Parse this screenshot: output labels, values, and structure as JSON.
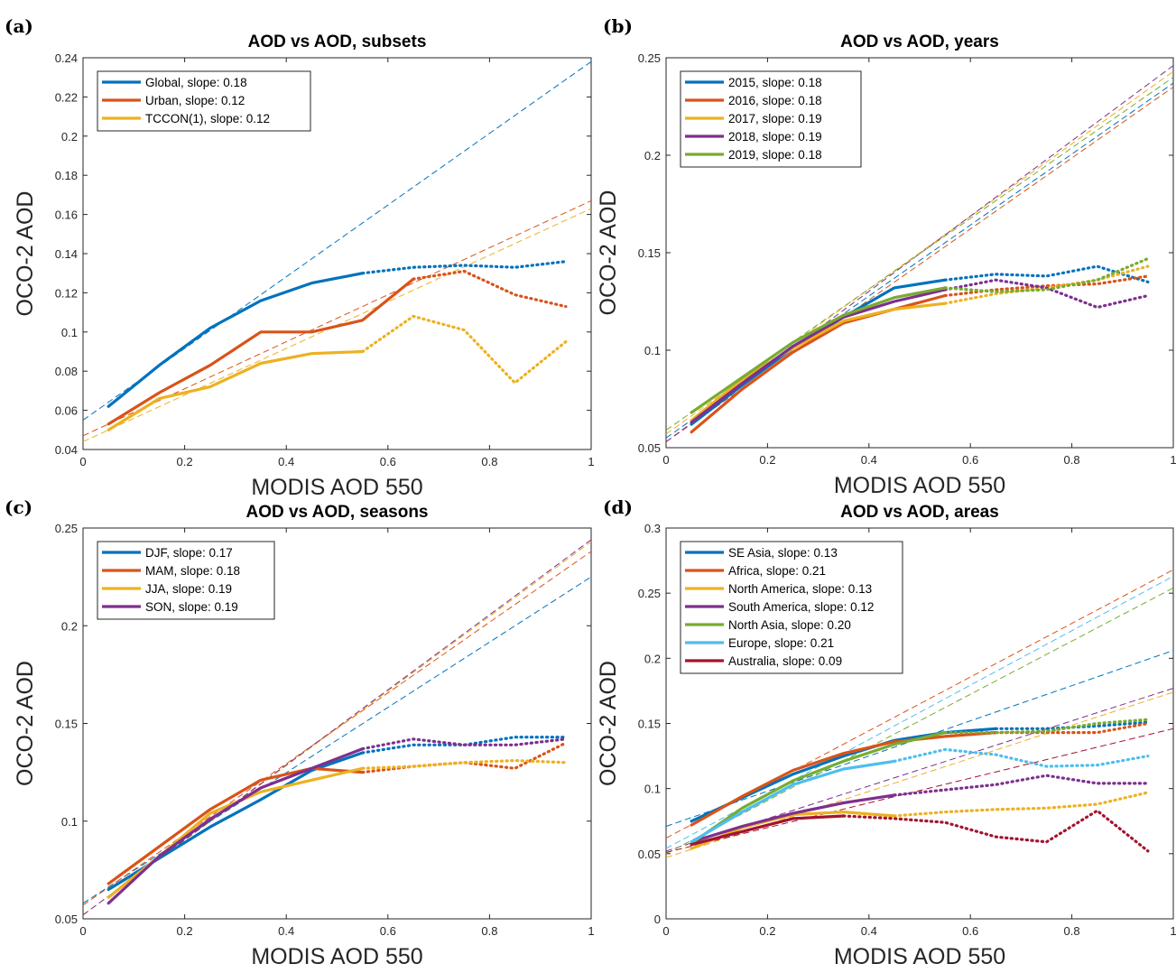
{
  "colors": {
    "blue": "#0072bd",
    "orange": "#d95319",
    "yellow": "#edb120",
    "purple": "#7e2f8e",
    "green": "#77ac30",
    "cyan": "#4dbeee",
    "darkred": "#a2142f"
  },
  "chart_data": [
    {
      "panel_label": "(a)",
      "type": "line",
      "title": "AOD vs AOD, subsets",
      "xlabel": "MODIS AOD 550",
      "ylabel": "OCO-2 AOD",
      "xlim": [
        0,
        1
      ],
      "ylim": [
        0.04,
        0.24
      ],
      "xticks": [
        "0",
        "0.2",
        "0.4",
        "0.6",
        "0.8",
        "1"
      ],
      "yticks": [
        "0.04",
        "0.06",
        "0.08",
        "0.1",
        "0.12",
        "0.14",
        "0.16",
        "0.18",
        "0.2",
        "0.22",
        "0.24"
      ],
      "x": [
        0.05,
        0.15,
        0.25,
        0.35,
        0.45,
        0.55,
        0.65,
        0.75,
        0.85,
        0.95
      ],
      "grid": false,
      "legend_position": "top-left",
      "series": [
        {
          "name": "Global, slope: 0.18",
          "color": "#0072bd",
          "solid_until": 0.55,
          "values": [
            0.062,
            0.083,
            0.102,
            0.116,
            0.125,
            0.13,
            0.133,
            0.134,
            0.133,
            0.136
          ],
          "fit": [
            0.055,
            0.238
          ]
        },
        {
          "name": "Urban, slope: 0.12",
          "color": "#d95319",
          "solid_until": 0.65,
          "values": [
            0.053,
            0.069,
            0.083,
            0.1,
            0.1,
            0.106,
            0.127,
            0.131,
            0.119,
            0.113
          ],
          "fit": [
            0.047,
            0.167
          ]
        },
        {
          "name": "TCCON(1), slope: 0.12",
          "color": "#edb120",
          "solid_until": 0.55,
          "values": [
            0.05,
            0.066,
            0.072,
            0.084,
            0.089,
            0.09,
            0.108,
            0.101,
            0.074,
            0.095
          ],
          "fit": [
            0.044,
            0.163
          ]
        }
      ]
    },
    {
      "panel_label": "(b)",
      "type": "line",
      "title": "AOD vs AOD, years",
      "xlabel": "MODIS AOD 550",
      "ylabel": "OCO-2 AOD",
      "xlim": [
        0,
        1
      ],
      "ylim": [
        0.05,
        0.25
      ],
      "xticks": [
        "0",
        "0.2",
        "0.4",
        "0.6",
        "0.8",
        "1"
      ],
      "yticks": [
        "0.05",
        "0.1",
        "0.15",
        "0.2",
        "0.25"
      ],
      "x": [
        0.05,
        0.15,
        0.25,
        0.35,
        0.45,
        0.55,
        0.65,
        0.75,
        0.85,
        0.95
      ],
      "grid": false,
      "legend_position": "top-left",
      "series": [
        {
          "name": "2015, slope: 0.18",
          "color": "#0072bd",
          "solid_until": 0.55,
          "values": [
            0.062,
            0.082,
            0.101,
            0.117,
            0.132,
            0.136,
            0.139,
            0.138,
            0.143,
            0.135
          ],
          "fit": [
            0.055,
            0.237
          ]
        },
        {
          "name": "2016, slope: 0.18",
          "color": "#d95319",
          "solid_until": 0.55,
          "values": [
            0.058,
            0.08,
            0.099,
            0.114,
            0.121,
            0.128,
            0.131,
            0.133,
            0.134,
            0.138
          ],
          "fit": [
            0.053,
            0.235
          ]
        },
        {
          "name": "2017, slope: 0.19",
          "color": "#edb120",
          "solid_until": 0.55,
          "values": [
            0.064,
            0.085,
            0.101,
            0.115,
            0.121,
            0.124,
            0.129,
            0.132,
            0.136,
            0.143
          ],
          "fit": [
            0.057,
            0.243
          ]
        },
        {
          "name": "2018, slope: 0.19",
          "color": "#7e2f8e",
          "solid_until": 0.55,
          "values": [
            0.063,
            0.083,
            0.102,
            0.117,
            0.125,
            0.131,
            0.136,
            0.132,
            0.122,
            0.128
          ],
          "fit": [
            0.053,
            0.246
          ]
        },
        {
          "name": "2019, slope: 0.18",
          "color": "#77ac30",
          "solid_until": 0.55,
          "values": [
            0.068,
            0.086,
            0.104,
            0.118,
            0.127,
            0.132,
            0.13,
            0.131,
            0.136,
            0.147
          ],
          "fit": [
            0.059,
            0.24
          ]
        }
      ]
    },
    {
      "panel_label": "(c)",
      "type": "line",
      "title": "AOD vs AOD, seasons",
      "xlabel": "MODIS AOD 550",
      "ylabel": "OCO-2 AOD",
      "xlim": [
        0,
        1
      ],
      "ylim": [
        0.05,
        0.25
      ],
      "xticks": [
        "0",
        "0.2",
        "0.4",
        "0.6",
        "0.8",
        "1"
      ],
      "yticks": [
        "0.05",
        "0.1",
        "0.15",
        "0.2",
        "0.25"
      ],
      "x": [
        0.05,
        0.15,
        0.25,
        0.35,
        0.45,
        0.55,
        0.65,
        0.75,
        0.85,
        0.95
      ],
      "grid": false,
      "legend_position": "top-left",
      "series": [
        {
          "name": "DJF, slope: 0.17",
          "color": "#0072bd",
          "solid_until": 0.55,
          "values": [
            0.065,
            0.081,
            0.097,
            0.111,
            0.126,
            0.135,
            0.139,
            0.139,
            0.143,
            0.143
          ],
          "fit": [
            0.058,
            0.225
          ]
        },
        {
          "name": "MAM, slope: 0.18",
          "color": "#d95319",
          "solid_until": 0.55,
          "values": [
            0.068,
            0.087,
            0.106,
            0.121,
            0.127,
            0.125,
            0.128,
            0.13,
            0.127,
            0.14
          ],
          "fit": [
            0.057,
            0.238
          ]
        },
        {
          "name": "JJA, slope: 0.19",
          "color": "#edb120",
          "solid_until": 0.55,
          "values": [
            0.061,
            0.082,
            0.104,
            0.115,
            0.121,
            0.127,
            0.128,
            0.13,
            0.131,
            0.13
          ],
          "fit": [
            0.052,
            0.243
          ]
        },
        {
          "name": "SON, slope: 0.19",
          "color": "#7e2f8e",
          "solid_until": 0.55,
          "values": [
            0.058,
            0.082,
            0.101,
            0.117,
            0.127,
            0.137,
            0.142,
            0.139,
            0.139,
            0.142
          ],
          "fit": [
            0.052,
            0.244
          ]
        }
      ]
    },
    {
      "panel_label": "(d)",
      "type": "line",
      "title": "AOD vs AOD, areas",
      "xlabel": "MODIS AOD 550",
      "ylabel": "OCO-2 AOD",
      "xlim": [
        0,
        1
      ],
      "ylim": [
        0,
        0.3
      ],
      "xticks": [
        "0",
        "0.2",
        "0.4",
        "0.6",
        "0.8",
        "1"
      ],
      "yticks": [
        "0",
        "0.05",
        "0.1",
        "0.15",
        "0.2",
        "0.25",
        "0.3"
      ],
      "grid": false,
      "legend_position": "top-left",
      "series": [
        {
          "name": "SE Asia, slope: 0.13",
          "color": "#0072bd",
          "solid_until": 0.65,
          "x": [
            0.05,
            0.15,
            0.25,
            0.35,
            0.45,
            0.55,
            0.65,
            0.75,
            0.85,
            0.95
          ],
          "values": [
            0.075,
            0.093,
            0.111,
            0.125,
            0.137,
            0.143,
            0.146,
            0.146,
            0.148,
            0.151
          ],
          "fit": [
            0.071,
            0.206
          ]
        },
        {
          "name": "Africa, slope: 0.21",
          "color": "#d95319",
          "solid_until": 0.65,
          "x": [
            0.05,
            0.15,
            0.25,
            0.35,
            0.45,
            0.55,
            0.65,
            0.75,
            0.85,
            0.95
          ],
          "values": [
            0.072,
            0.094,
            0.114,
            0.127,
            0.136,
            0.14,
            0.143,
            0.143,
            0.143,
            0.15
          ],
          "fit": [
            0.062,
            0.268
          ]
        },
        {
          "name": "North America, slope: 0.13",
          "color": "#edb120",
          "solid_until": 0.45,
          "x": [
            0.05,
            0.15,
            0.25,
            0.35,
            0.45,
            0.55,
            0.65,
            0.75,
            0.85,
            0.95
          ],
          "values": [
            0.054,
            0.07,
            0.08,
            0.082,
            0.079,
            0.082,
            0.084,
            0.085,
            0.088,
            0.097
          ],
          "fit": [
            0.047,
            0.174
          ]
        },
        {
          "name": "South America, slope: 0.12",
          "color": "#7e2f8e",
          "solid_until": 0.45,
          "x": [
            0.05,
            0.15,
            0.25,
            0.35,
            0.45,
            0.55,
            0.65,
            0.75,
            0.85,
            0.95
          ],
          "values": [
            0.059,
            0.071,
            0.081,
            0.089,
            0.095,
            0.099,
            0.103,
            0.11,
            0.104,
            0.104
          ],
          "fit": [
            0.052,
            0.177
          ]
        },
        {
          "name": "North Asia, slope: 0.20",
          "color": "#77ac30",
          "solid_until": 0.55,
          "x": [
            0.05,
            0.15,
            0.25,
            0.35,
            0.45,
            0.55,
            0.65,
            0.75,
            0.85,
            0.95
          ],
          "values": [
            0.058,
            0.085,
            0.106,
            0.121,
            0.134,
            0.143,
            0.143,
            0.144,
            0.15,
            0.153
          ],
          "fit": [
            0.05,
            0.254
          ]
        },
        {
          "name": "Europe, slope: 0.21",
          "color": "#4dbeee",
          "solid_until": 0.45,
          "x": [
            0.05,
            0.15,
            0.25,
            0.35,
            0.45,
            0.55,
            0.65,
            0.75,
            0.85,
            0.95
          ],
          "values": [
            0.059,
            0.082,
            0.103,
            0.115,
            0.121,
            0.13,
            0.126,
            0.117,
            0.118,
            0.125
          ],
          "fit": [
            0.054,
            0.263
          ]
        },
        {
          "name": "Australia, slope: 0.09",
          "color": "#a2142f",
          "solid_until": 0.35,
          "x": [
            0.05,
            0.15,
            0.25,
            0.35,
            0.45,
            0.55,
            0.65,
            0.75,
            0.85,
            0.95
          ],
          "values": [
            0.057,
            0.067,
            0.077,
            0.079,
            0.077,
            0.074,
            0.063,
            0.059,
            0.083,
            0.052
          ],
          "fit": [
            0.051,
            0.146
          ]
        }
      ]
    }
  ]
}
